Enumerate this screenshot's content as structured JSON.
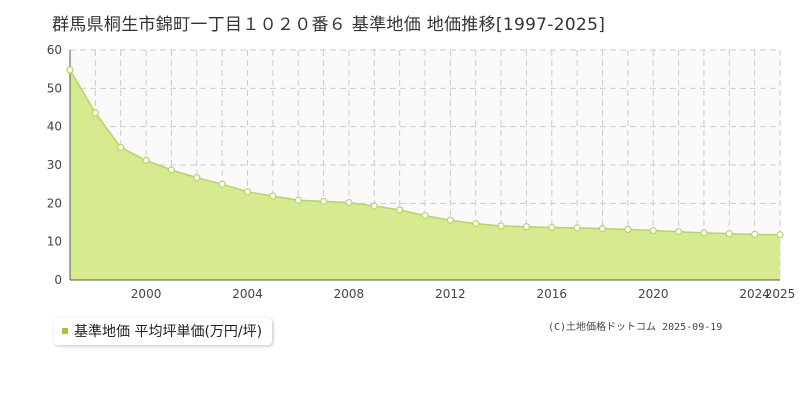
{
  "title": "群馬県桐生市錦町一丁目１０２０番６ 基準地価 地価推移[1997-2025]",
  "legend": {
    "label": "基準地価 平均坪単価(万円/坪)"
  },
  "credit": "(C)土地価格ドットコム 2025-09-19",
  "colors": {
    "fill": "#d6ea8f",
    "line": "#b8d65a",
    "marker_fill": "#ffffff",
    "marker_stroke": "#b8d65a",
    "grid": "#cccccc",
    "legend_swatch": "#9acd32",
    "plot_bg": "#fafafa"
  },
  "chart_data": {
    "type": "area",
    "title": "群馬県桐生市錦町一丁目１０２０番６ 基準地価 地価推移[1997-2025]",
    "xlabel": "",
    "ylabel": "",
    "xlim": [
      1997,
      2025
    ],
    "ylim": [
      0,
      60
    ],
    "x_ticks": [
      2000,
      2004,
      2008,
      2012,
      2016,
      2020,
      2024,
      2025
    ],
    "y_ticks": [
      0,
      10,
      20,
      30,
      40,
      50,
      60
    ],
    "grid": true,
    "legend_position": "bottom-left",
    "series": [
      {
        "name": "基準地価 平均坪単価(万円/坪)",
        "x": [
          1997,
          1998,
          1999,
          2000,
          2001,
          2002,
          2003,
          2004,
          2005,
          2006,
          2007,
          2008,
          2009,
          2010,
          2011,
          2012,
          2013,
          2014,
          2015,
          2016,
          2017,
          2018,
          2019,
          2020,
          2021,
          2022,
          2023,
          2024,
          2025
        ],
        "values": [
          54.8,
          43.6,
          34.6,
          31.2,
          28.7,
          26.7,
          25.0,
          23.0,
          21.9,
          20.8,
          20.5,
          20.2,
          19.3,
          18.3,
          16.8,
          15.6,
          14.7,
          14.1,
          13.9,
          13.7,
          13.6,
          13.4,
          13.2,
          12.9,
          12.6,
          12.3,
          12.1,
          11.9,
          11.8
        ]
      }
    ]
  }
}
